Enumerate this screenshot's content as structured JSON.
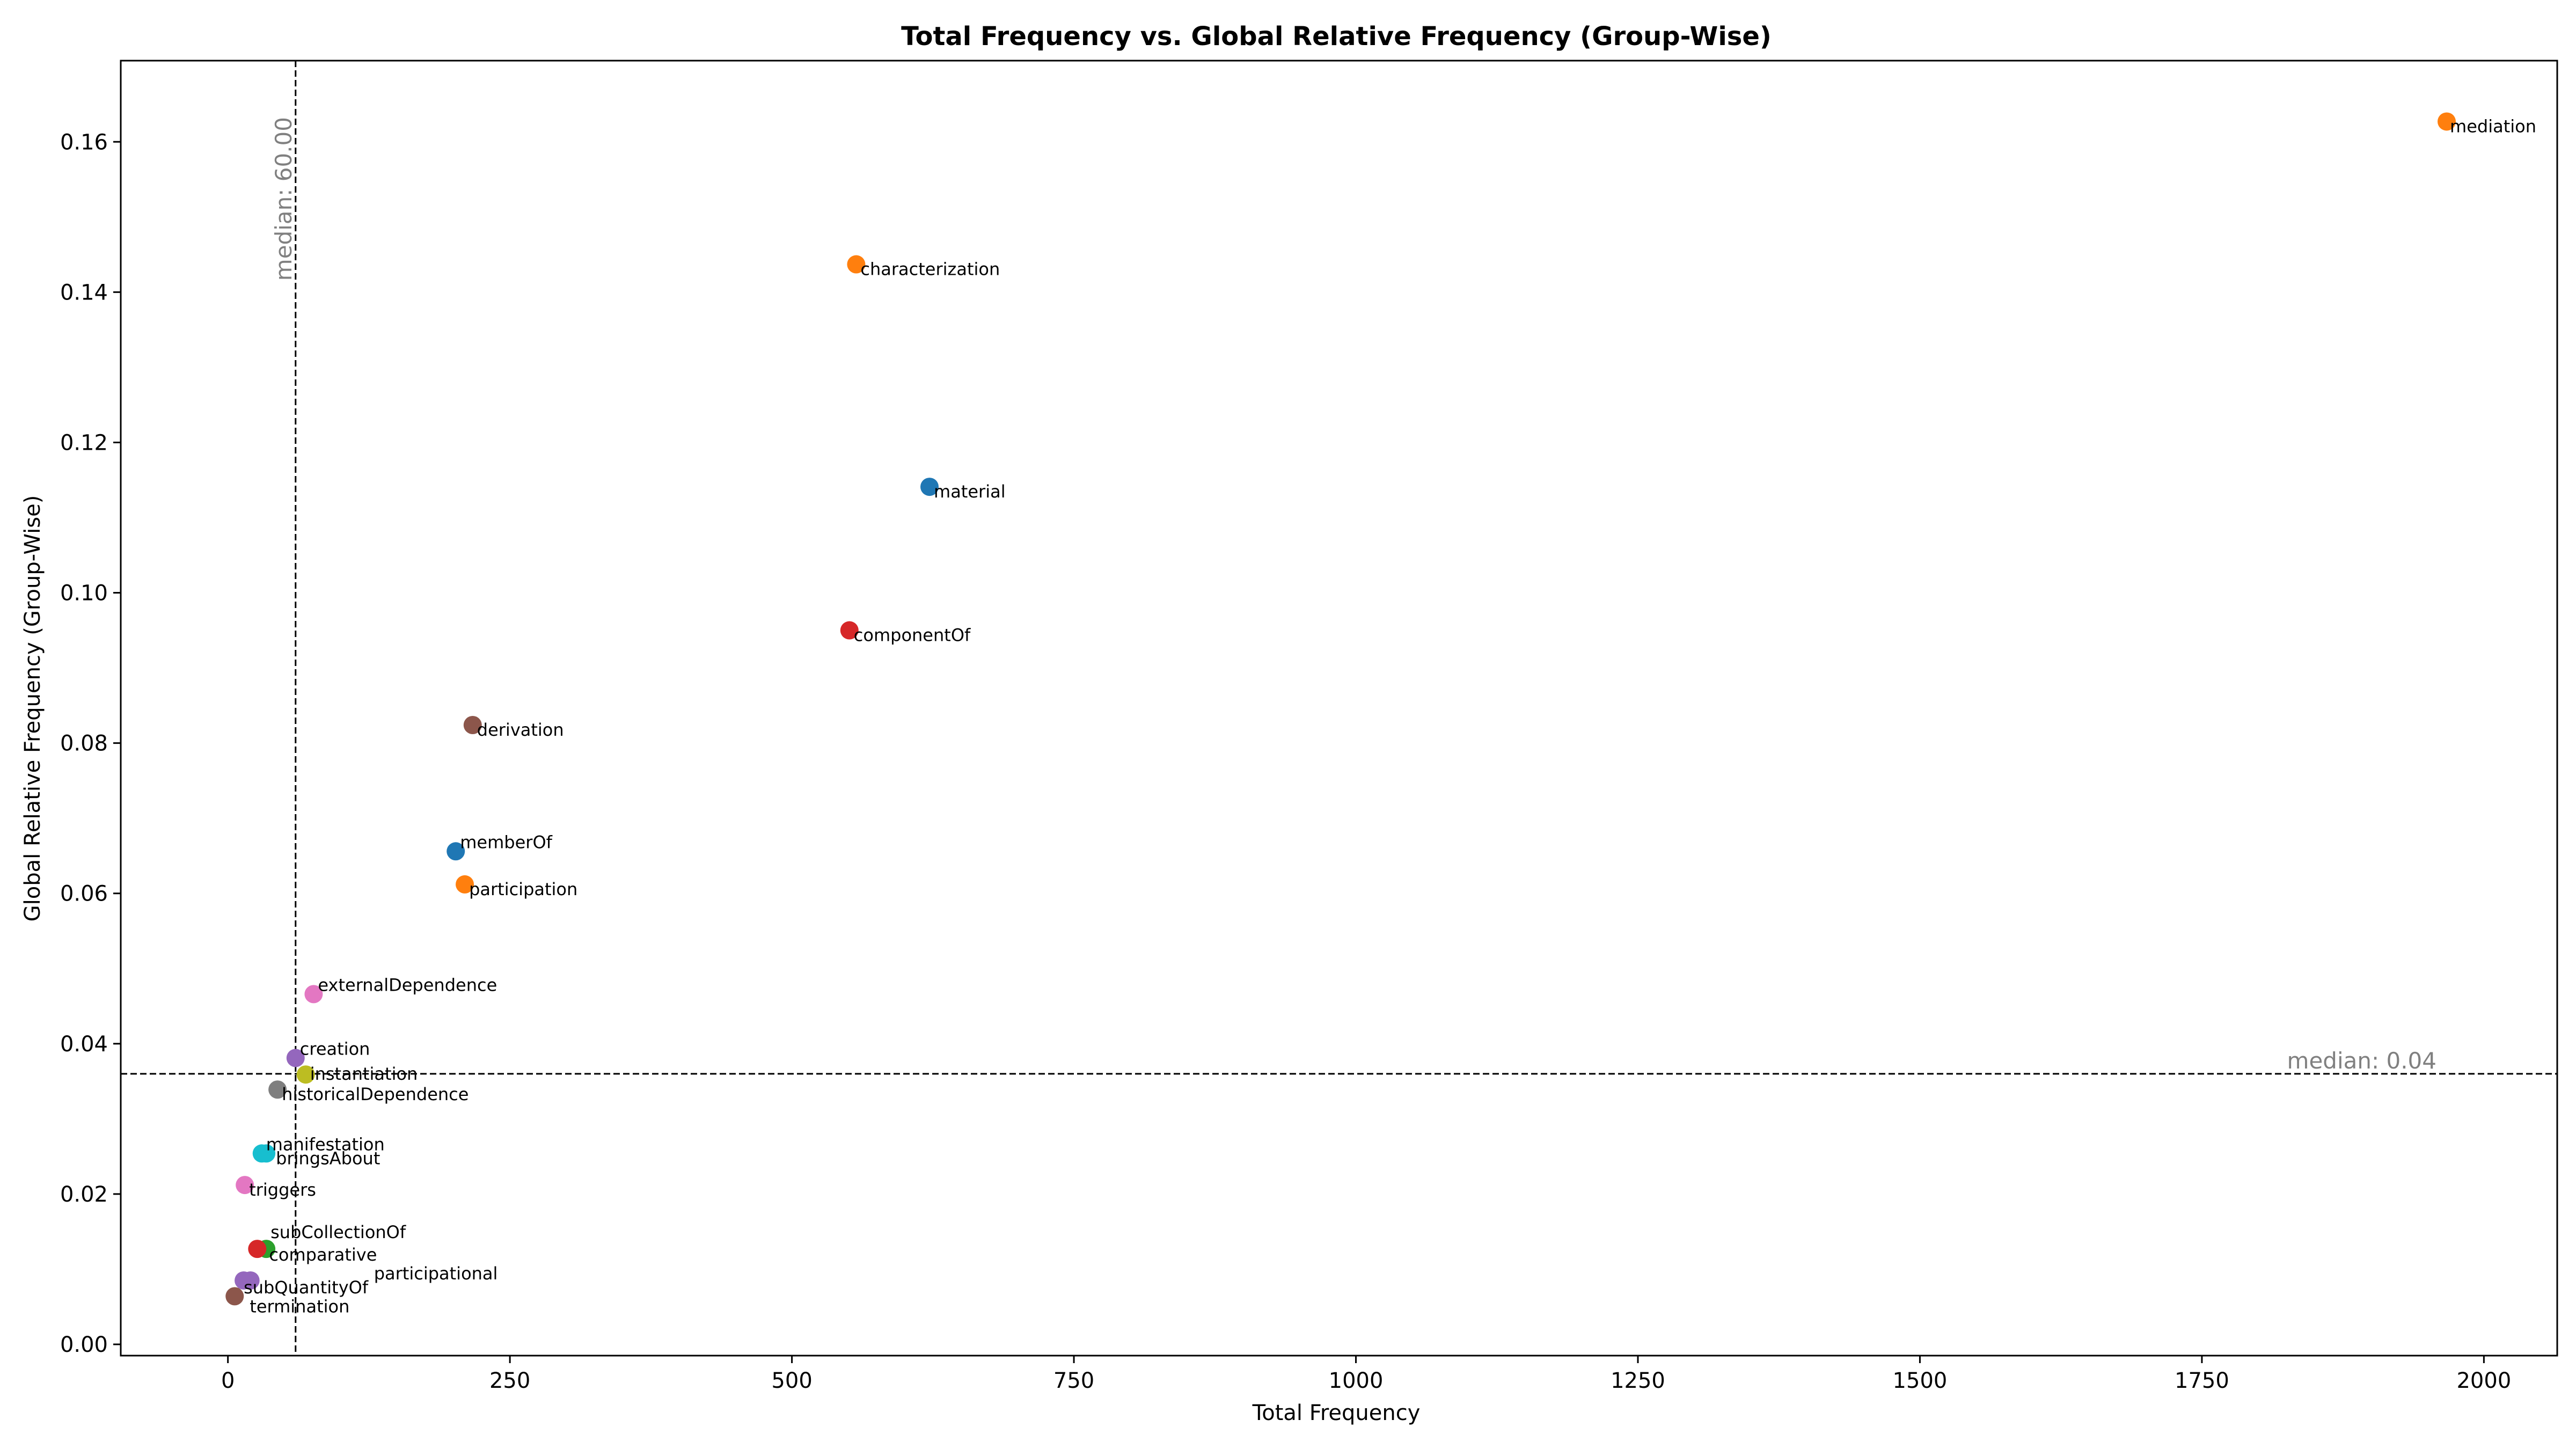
{
  "chart_data": {
    "type": "scatter",
    "title": "Total Frequency vs. Global Relative Frequency (Group-Wise)",
    "xlabel": "Total Frequency",
    "ylabel": "Global Relative Frequency (Group-Wise)",
    "xlim": [
      -95,
      2065
    ],
    "ylim": [
      -0.0015,
      0.1708
    ],
    "xticks": [
      0,
      250,
      500,
      750,
      1000,
      1250,
      1500,
      1750,
      2000
    ],
    "xtick_labels": [
      "0",
      "250",
      "500",
      "750",
      "1000",
      "1250",
      "1500",
      "1750",
      "2000"
    ],
    "yticks": [
      0.0,
      0.02,
      0.04,
      0.06,
      0.08,
      0.1,
      0.12,
      0.14,
      0.16
    ],
    "ytick_labels": [
      "0.00",
      "0.02",
      "0.04",
      "0.06",
      "0.08",
      "0.10",
      "0.12",
      "0.14",
      "0.16"
    ],
    "grid": false,
    "median_x": {
      "value": 60,
      "label": "median: 60.00"
    },
    "median_y": {
      "value": 0.036,
      "label": "median: 0.04"
    },
    "points": [
      {
        "label": "mediation",
        "x": 1967,
        "y": 0.1627,
        "color": "#ff7f0e"
      },
      {
        "label": "characterization",
        "x": 557,
        "y": 0.1437,
        "color": "#ff7f0e"
      },
      {
        "label": "material",
        "x": 622,
        "y": 0.1141,
        "color": "#1f77b4"
      },
      {
        "label": "componentOf",
        "x": 551,
        "y": 0.095,
        "color": "#d62728"
      },
      {
        "label": "derivation",
        "x": 217,
        "y": 0.0824,
        "color": "#8c564b"
      },
      {
        "label": "memberOf",
        "x": 202,
        "y": 0.0656,
        "color": "#1f77b4"
      },
      {
        "label": "participation",
        "x": 210,
        "y": 0.0612,
        "color": "#ff7f0e"
      },
      {
        "label": "externalDependence",
        "x": 76,
        "y": 0.0466,
        "color": "#e377c2"
      },
      {
        "label": "creation",
        "x": 60,
        "y": 0.0381,
        "color": "#9467bd"
      },
      {
        "label": "instantiation",
        "x": 69,
        "y": 0.0359,
        "color": "#bcbd22"
      },
      {
        "label": "historicalDependence",
        "x": 44,
        "y": 0.0339,
        "color": "#7f7f7f"
      },
      {
        "label": "manifestation",
        "x": 30,
        "y": 0.0254,
        "color": "#17becf"
      },
      {
        "label": "bringsAbout",
        "x": 34,
        "y": 0.0254,
        "color": "#17becf"
      },
      {
        "label": "triggers",
        "x": 15,
        "y": 0.0212,
        "color": "#e377c2"
      },
      {
        "label": "subCollectionOf",
        "x": 34,
        "y": 0.0127,
        "color": "#2ca02c"
      },
      {
        "label": "comparative",
        "x": 26,
        "y": 0.0127,
        "color": "#d62728"
      },
      {
        "label": "participational",
        "x": 20,
        "y": 0.0085,
        "color": "#9467bd"
      },
      {
        "label": "subQuantityOf",
        "x": 14,
        "y": 0.0085,
        "color": "#9467bd"
      },
      {
        "label": "termination",
        "x": 6,
        "y": 0.0064,
        "color": "#8c564b"
      }
    ]
  }
}
